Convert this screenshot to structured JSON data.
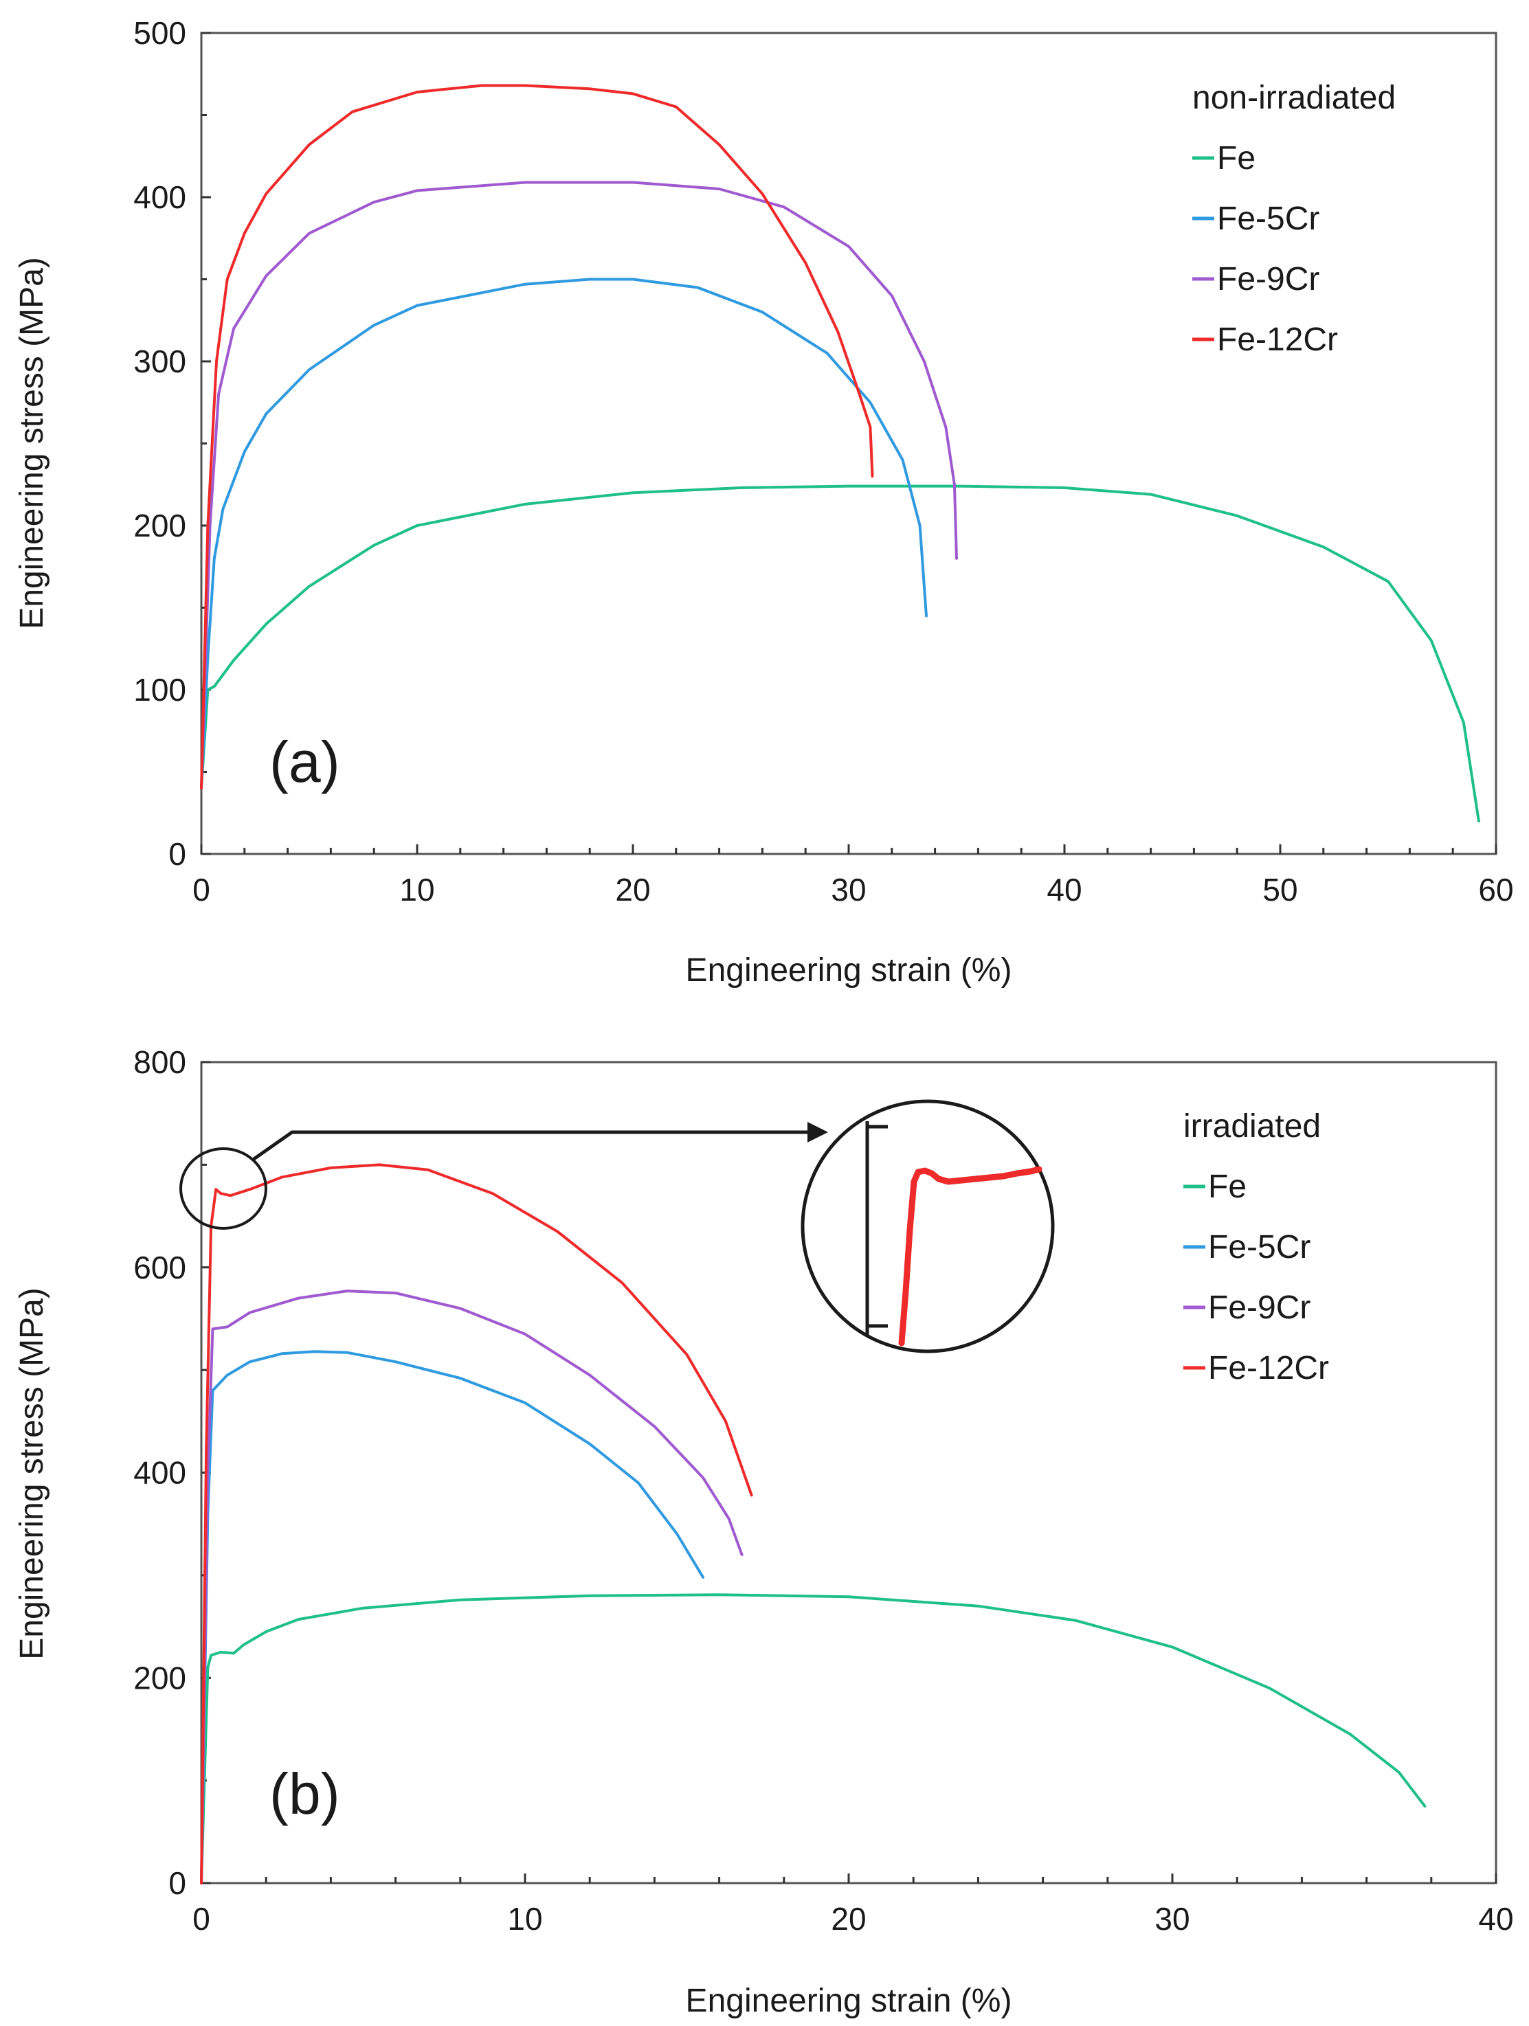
{
  "colors": {
    "Fe": "#1fbf8a",
    "Fe-5Cr": "#2f9ae0",
    "Fe-9Cr": "#a05ad0",
    "Fe-12Cr": "#ee2a2a"
  },
  "chart_data": [
    {
      "type": "line",
      "panel": "(a)",
      "title": "",
      "xlabel": "Engineering strain (%)",
      "ylabel": "Engineering stress (MPa)",
      "xlim": [
        0,
        60
      ],
      "ylim": [
        0,
        500
      ],
      "x_ticks": [
        0,
        10,
        20,
        30,
        40,
        50,
        60
      ],
      "y_ticks": [
        0,
        100,
        200,
        300,
        400,
        500
      ],
      "grid": false,
      "legend": {
        "title": "non-irradiated",
        "position": "top-right"
      },
      "series": [
        {
          "name": "Fe",
          "color_key": "Fe",
          "points": [
            [
              0,
              40
            ],
            [
              0.3,
              100
            ],
            [
              0.6,
              102
            ],
            [
              1.5,
              118
            ],
            [
              3,
              140
            ],
            [
              5,
              163
            ],
            [
              8,
              188
            ],
            [
              10,
              200
            ],
            [
              15,
              213
            ],
            [
              20,
              220
            ],
            [
              25,
              223
            ],
            [
              30,
              224
            ],
            [
              35,
              224
            ],
            [
              40,
              223
            ],
            [
              44,
              219
            ],
            [
              48,
              206
            ],
            [
              52,
              187
            ],
            [
              55,
              166
            ],
            [
              57,
              130
            ],
            [
              58.5,
              80
            ],
            [
              59.2,
              20
            ]
          ]
        },
        {
          "name": "Fe-5Cr",
          "color_key": "Fe-5Cr",
          "points": [
            [
              0,
              40
            ],
            [
              0.3,
              120
            ],
            [
              0.6,
              180
            ],
            [
              1,
              210
            ],
            [
              2,
              245
            ],
            [
              3,
              268
            ],
            [
              5,
              295
            ],
            [
              8,
              322
            ],
            [
              10,
              334
            ],
            [
              15,
              347
            ],
            [
              18,
              350
            ],
            [
              20,
              350
            ],
            [
              23,
              345
            ],
            [
              26,
              330
            ],
            [
              29,
              305
            ],
            [
              31,
              275
            ],
            [
              32.5,
              240
            ],
            [
              33.3,
              200
            ],
            [
              33.6,
              145
            ]
          ]
        },
        {
          "name": "Fe-9Cr",
          "color_key": "Fe-9Cr",
          "points": [
            [
              0,
              40
            ],
            [
              0.4,
              200
            ],
            [
              0.8,
              280
            ],
            [
              1.5,
              320
            ],
            [
              3,
              352
            ],
            [
              5,
              378
            ],
            [
              8,
              397
            ],
            [
              10,
              404
            ],
            [
              15,
              409
            ],
            [
              20,
              409
            ],
            [
              24,
              405
            ],
            [
              27,
              394
            ],
            [
              30,
              370
            ],
            [
              32,
              340
            ],
            [
              33.5,
              300
            ],
            [
              34.5,
              260
            ],
            [
              34.9,
              225
            ],
            [
              35,
              180
            ]
          ]
        },
        {
          "name": "Fe-12Cr",
          "color_key": "Fe-12Cr",
          "points": [
            [
              0,
              40
            ],
            [
              0.3,
              200
            ],
            [
              0.7,
              300
            ],
            [
              1.2,
              350
            ],
            [
              2,
              378
            ],
            [
              3,
              402
            ],
            [
              5,
              432
            ],
            [
              7,
              452
            ],
            [
              10,
              464
            ],
            [
              13,
              468
            ],
            [
              15,
              468
            ],
            [
              18,
              466
            ],
            [
              20,
              463
            ],
            [
              22,
              455
            ],
            [
              24,
              432
            ],
            [
              26,
              402
            ],
            [
              28,
              360
            ],
            [
              29.5,
              318
            ],
            [
              30.5,
              280
            ],
            [
              31,
              260
            ],
            [
              31.1,
              230
            ]
          ]
        }
      ]
    },
    {
      "type": "line",
      "panel": "(b)",
      "title": "",
      "xlabel": "Engineering strain (%)",
      "ylabel": "Engineering stress (MPa)",
      "xlim": [
        0,
        40
      ],
      "ylim": [
        0,
        800
      ],
      "x_ticks": [
        0,
        10,
        20,
        30,
        40
      ],
      "y_ticks": [
        0,
        200,
        400,
        600,
        800
      ],
      "grid": false,
      "legend": {
        "title": "irradiated",
        "position": "top-right"
      },
      "inset": {
        "description_key": "zoom",
        "x_center": 0.6,
        "y_center": 680
      },
      "series": [
        {
          "name": "Fe",
          "color_key": "Fe",
          "points": [
            [
              0,
              0
            ],
            [
              0.2,
              210
            ],
            [
              0.3,
              222
            ],
            [
              0.6,
              225
            ],
            [
              1,
              224
            ],
            [
              1.3,
              232
            ],
            [
              2,
              245
            ],
            [
              3,
              257
            ],
            [
              5,
              268
            ],
            [
              8,
              276
            ],
            [
              12,
              280
            ],
            [
              16,
              281
            ],
            [
              20,
              279
            ],
            [
              24,
              270
            ],
            [
              27,
              256
            ],
            [
              30,
              230
            ],
            [
              33,
              190
            ],
            [
              35.5,
              145
            ],
            [
              37,
              108
            ],
            [
              37.8,
              75
            ]
          ]
        },
        {
          "name": "Fe-5Cr",
          "color_key": "Fe-5Cr",
          "points": [
            [
              0,
              0
            ],
            [
              0.2,
              360
            ],
            [
              0.35,
              480
            ],
            [
              0.8,
              495
            ],
            [
              1.5,
              508
            ],
            [
              2.5,
              516
            ],
            [
              3.5,
              518
            ],
            [
              4.5,
              517
            ],
            [
              6,
              508
            ],
            [
              8,
              492
            ],
            [
              10,
              468
            ],
            [
              12,
              428
            ],
            [
              13.5,
              390
            ],
            [
              14.7,
              340
            ],
            [
              15.5,
              298
            ]
          ]
        },
        {
          "name": "Fe-9Cr",
          "color_key": "Fe-9Cr",
          "points": [
            [
              0,
              0
            ],
            [
              0.2,
              400
            ],
            [
              0.35,
              540
            ],
            [
              0.8,
              542
            ],
            [
              1.5,
              556
            ],
            [
              3,
              570
            ],
            [
              4.5,
              577
            ],
            [
              6,
              575
            ],
            [
              8,
              560
            ],
            [
              10,
              535
            ],
            [
              12,
              495
            ],
            [
              14,
              445
            ],
            [
              15.5,
              395
            ],
            [
              16.3,
              355
            ],
            [
              16.7,
              320
            ]
          ]
        },
        {
          "name": "Fe-12Cr",
          "color_key": "Fe-12Cr",
          "points": [
            [
              0,
              0
            ],
            [
              0.15,
              420
            ],
            [
              0.3,
              640
            ],
            [
              0.45,
              676
            ],
            [
              0.6,
              672
            ],
            [
              0.9,
              670
            ],
            [
              1.5,
              676
            ],
            [
              2.5,
              688
            ],
            [
              4,
              697
            ],
            [
              5.5,
              700
            ],
            [
              7,
              695
            ],
            [
              9,
              672
            ],
            [
              11,
              635
            ],
            [
              13,
              585
            ],
            [
              15,
              515
            ],
            [
              16.2,
              450
            ],
            [
              17,
              378
            ]
          ]
        }
      ]
    }
  ]
}
